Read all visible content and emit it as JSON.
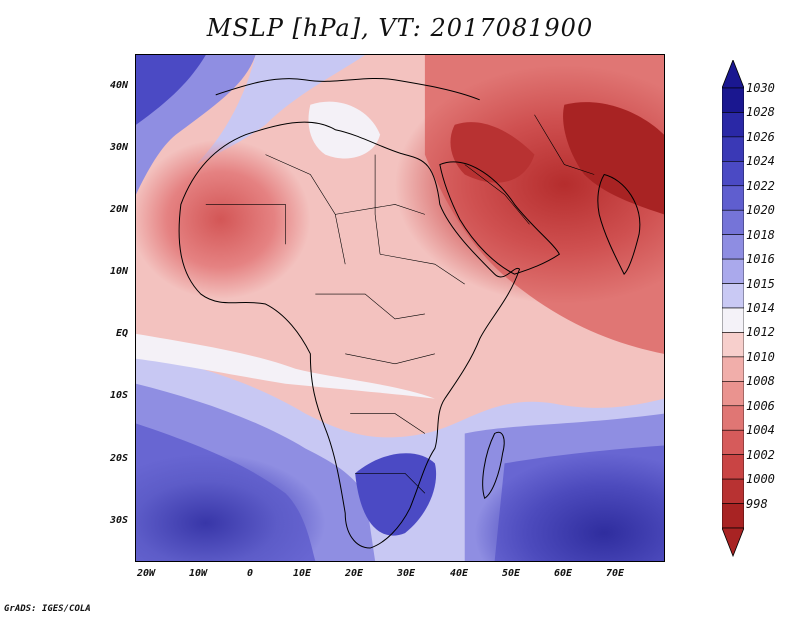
{
  "title": "MSLP [hPa], VT: 2017081900",
  "map": {
    "lat_labels": [
      "40N",
      "30N",
      "20N",
      "10N",
      "EQ",
      "10S",
      "20S",
      "30S"
    ],
    "lon_labels": [
      "20W",
      "10W",
      "0",
      "10E",
      "20E",
      "30E",
      "40E",
      "50E",
      "60E",
      "70E"
    ],
    "region": "Africa, Arabian Peninsula and Indian Ocean",
    "extent": {
      "lon_min": -21,
      "lon_max": 80,
      "lat_min": -37,
      "lat_max": 45
    }
  },
  "colorbar": {
    "unit": "hPa",
    "levels": [
      "1030",
      "1028",
      "1026",
      "1024",
      "1022",
      "1020",
      "1018",
      "1016",
      "1015",
      "1014",
      "1012",
      "1010",
      "1008",
      "1006",
      "1004",
      "1002",
      "1000",
      "998"
    ],
    "colors": {
      "1030": "#1a1790",
      "1028": "#2a28a6",
      "1026": "#3a39b6",
      "1024": "#4b4ac4",
      "1022": "#5f5ecf",
      "1020": "#7574d8",
      "1018": "#8e8de2",
      "1016": "#aaa9ec",
      "1015": "#c9c9f4",
      "1014": "#f4f2f8",
      "1012": "#f7cfcc",
      "1010": "#f1aeaa",
      "1008": "#ea938f",
      "1006": "#e07674",
      "1004": "#d65b5b",
      "1002": "#c94444",
      "1000": "#b83232",
      "998": "#a82323"
    }
  },
  "credit": "GrADS: IGES/COLA"
}
